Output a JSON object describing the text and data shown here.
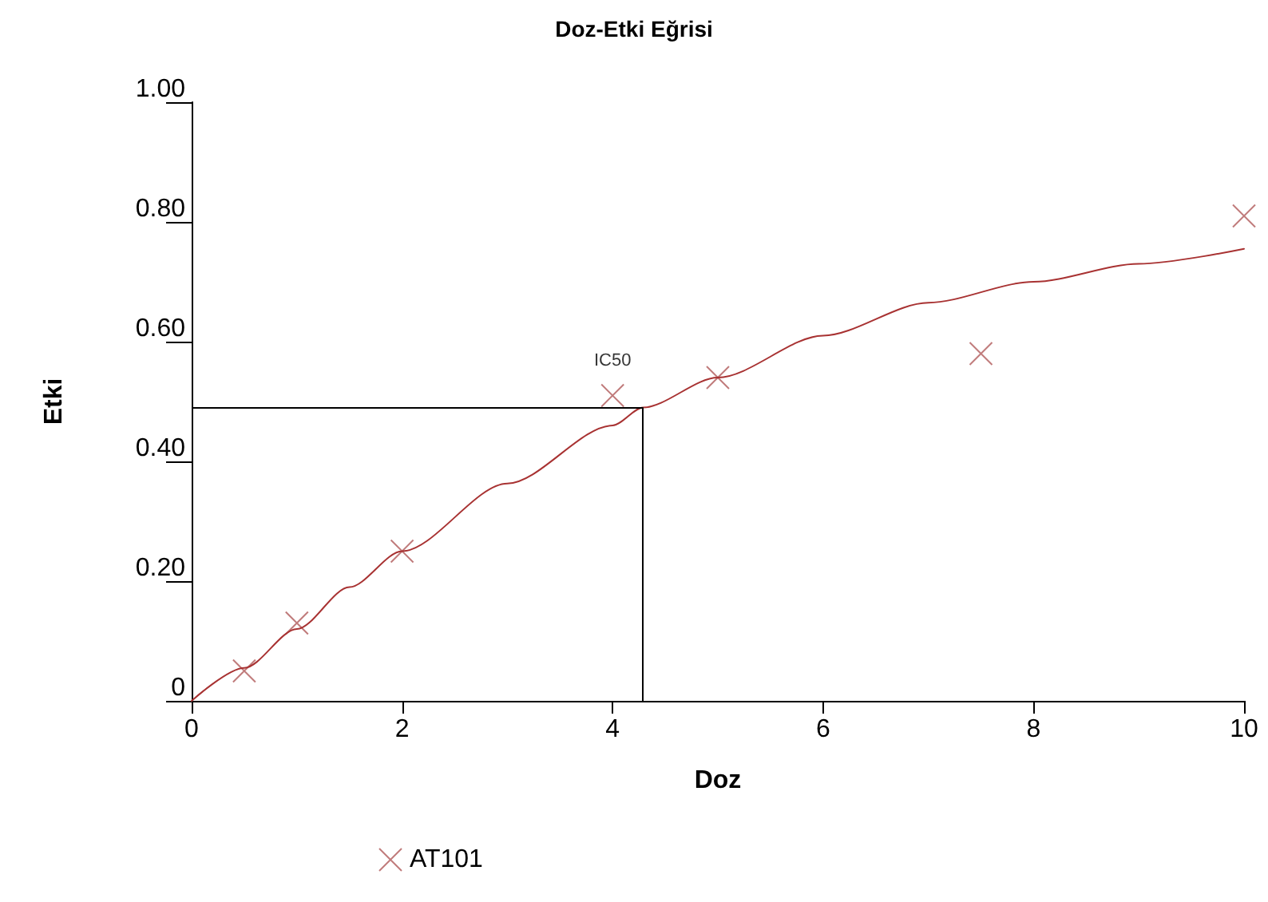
{
  "chart_data": {
    "type": "scatter",
    "title": "Doz-Etki Eğrisi",
    "xlabel": "Doz",
    "ylabel": "Etki",
    "series": [
      {
        "name": "AT101",
        "color": "#b05a5a",
        "marker": "cross",
        "x": [
          0.5,
          1,
          2,
          4,
          5,
          7.5,
          10
        ],
        "values": [
          0.05,
          0.13,
          0.25,
          0.51,
          0.54,
          0.58,
          0.81
        ]
      },
      {
        "type": "line",
        "color": "#a83232",
        "marker": "none",
        "line_style": "solid",
        "x": [
          0,
          0.5,
          1,
          1.5,
          2,
          3,
          4,
          4.29,
          5,
          6,
          7,
          8,
          9,
          10
        ],
        "values": [
          0,
          0.055,
          0.12,
          0.19,
          0.25,
          0.363,
          0.46,
          0.49,
          0.54,
          0.61,
          0.665,
          0.7,
          0.73,
          0.755
        ]
      }
    ],
    "xlim": [
      0,
      10
    ],
    "xticks": [
      0,
      2,
      4,
      6,
      8,
      10
    ],
    "ylim": [
      0,
      1
    ],
    "yticks": [
      {
        "value": 0,
        "label": "0"
      },
      {
        "value": 0.2,
        "label": "0.20"
      },
      {
        "value": 0.4,
        "label": "0.40"
      },
      {
        "value": 0.6,
        "label": "0.60"
      },
      {
        "value": 0.8,
        "label": "0.80"
      },
      {
        "value": 1,
        "label": "1.00"
      }
    ],
    "ref_lines": [
      {
        "axis": "y",
        "value": 0.49,
        "color": "#000000"
      },
      {
        "axis": "x",
        "value": 4.29,
        "color": "#000000"
      }
    ],
    "annotations": [
      {
        "text": "IC50",
        "x": 4,
        "y": 0.51
      }
    ],
    "grid": false,
    "legend": "bottom"
  }
}
